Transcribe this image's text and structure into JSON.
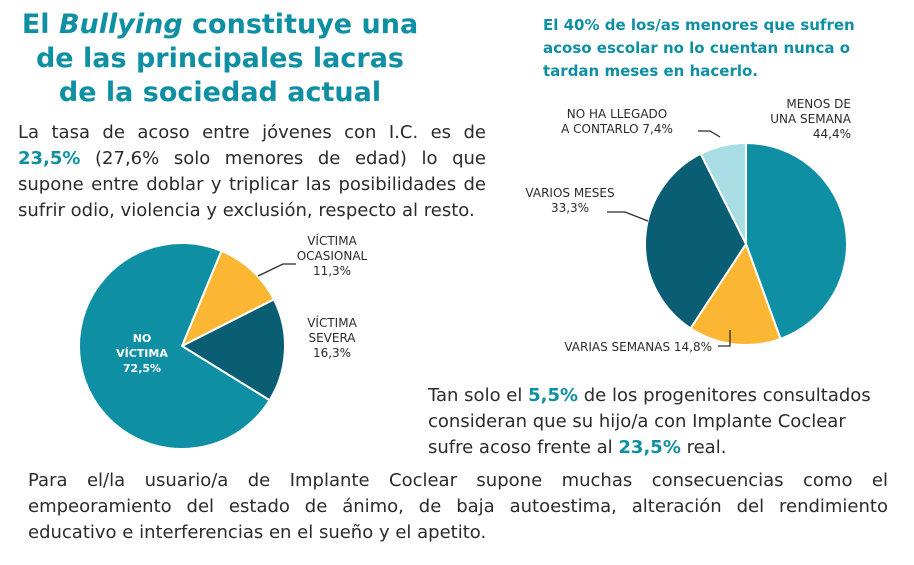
{
  "title": {
    "before": "El ",
    "emph": "Bullying",
    "after": " constituye una de las principales lacras de la sociedad actual"
  },
  "para1": {
    "t1": "La tasa de acoso entre jóvenes con I.C. es de ",
    "h1": "23,5%",
    "t2": " (27,6% solo menores de edad) lo que supone entre doblar y triplicar las posibilidades de sufrir odio, violencia y exclusión, respecto al resto."
  },
  "right_title": "El 40% de los/as menores que sufren acoso escolar no lo cuentan nunca o tardan meses en hacerlo.",
  "para2": {
    "t1": "Tan solo el ",
    "h1": "5,5%",
    "t2": " de los progenitores consultados consideran que su hijo/a con Implante Coclear sufre acoso frente al ",
    "h2": "23,5%",
    "t3": " real."
  },
  "para3": "Para el/la usuario/a de Implante Coclear supone muchas consecuencias como el empeoramiento del estado de ánimo, de baja autoestima, alteración del rendimiento educativo e interferencias en el sueño y el apetito.",
  "chart_data": [
    {
      "type": "pie",
      "title": "",
      "slices": [
        {
          "label_lines": [
            "VÍCTIMA",
            "OCASIONAL",
            "11,3%"
          ],
          "value": 11.3,
          "color": "#fbb733"
        },
        {
          "label_lines": [
            "VÍCTIMA",
            "SEVERA",
            "16,3%"
          ],
          "value": 16.3,
          "color": "#0a5e74"
        },
        {
          "label_lines": [
            "NO",
            "VÍCTIMA",
            "72,5%"
          ],
          "value": 72.5,
          "color": "#0e8fa3"
        }
      ]
    },
    {
      "type": "pie",
      "title": "El 40% de los/as menores que sufren acoso escolar no lo cuentan nunca o tardan meses en hacerlo.",
      "slices": [
        {
          "label_lines": [
            "MENOS DE",
            "UNA SEMANA",
            "44,4%"
          ],
          "value": 44.4,
          "color": "#0e8fa3"
        },
        {
          "label_lines": [
            "VARIAS SEMANAS 14,8%"
          ],
          "value": 14.8,
          "color": "#fbb733"
        },
        {
          "label_lines": [
            "VARIOS MESES",
            "33,3%"
          ],
          "value": 33.3,
          "color": "#0a5e74"
        },
        {
          "label_lines": [
            "NO HA LLEGADO",
            "A CONTARLO 7,4%"
          ],
          "value": 7.4,
          "color": "#a9dde6"
        }
      ]
    }
  ]
}
